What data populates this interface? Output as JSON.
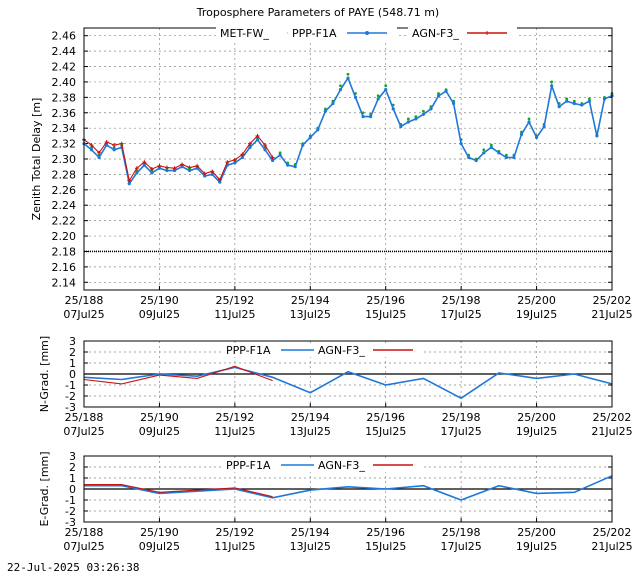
{
  "title": "Troposphere Parameters of PAYE (548.71 m)",
  "footer": "22-Jul-2025 03:26:38",
  "colors": {
    "met": "#11aa11",
    "ppp": "#1f78d8",
    "agn": "#cc1111",
    "grid": "#888888",
    "ref": "#000000"
  },
  "x_ticks": [
    {
      "value": 188,
      "doy": "25/188",
      "date": "07Jul25"
    },
    {
      "value": 190,
      "doy": "25/190",
      "date": "09Jul25"
    },
    {
      "value": 192,
      "doy": "25/192",
      "date": "11Jul25"
    },
    {
      "value": 194,
      "doy": "25/194",
      "date": "13Jul25"
    },
    {
      "value": 196,
      "doy": "25/196",
      "date": "15Jul25"
    },
    {
      "value": 198,
      "doy": "25/198",
      "date": "17Jul25"
    },
    {
      "value": 200,
      "doy": "25/200",
      "date": "19Jul25"
    },
    {
      "value": 202,
      "doy": "25/202",
      "date": "21Jul25"
    }
  ],
  "chart_data": [
    {
      "type": "line",
      "title": "Troposphere Parameters of PAYE (548.71 m)",
      "ylabel": "Zenith Total Delay [m]",
      "xlim": [
        188,
        202
      ],
      "ylim": [
        2.13,
        2.47
      ],
      "y_ticks": [
        "2.14",
        "2.16",
        "2.18",
        "2.20",
        "2.22",
        "2.24",
        "2.26",
        "2.28",
        "2.30",
        "2.32",
        "2.34",
        "2.36",
        "2.38",
        "2.40",
        "2.42",
        "2.44",
        "2.46"
      ],
      "grid": true,
      "legend": "top",
      "reference_line": 2.18,
      "series": [
        {
          "name": "MET-FW_",
          "style": "points",
          "x": [
            188.0,
            188.2,
            188.4,
            188.6,
            188.8,
            189.0,
            189.2,
            189.4,
            189.6,
            189.8,
            190.0,
            190.2,
            190.4,
            190.6,
            190.8,
            191.0,
            191.2,
            191.4,
            191.6,
            191.8,
            192.0,
            192.2,
            192.4,
            192.6,
            192.8,
            193.0,
            193.2,
            193.4,
            193.6,
            193.8,
            194.0,
            194.2,
            194.4,
            194.6,
            194.8,
            195.0,
            195.2,
            195.4,
            195.6,
            195.8,
            196.0,
            196.2,
            196.4,
            196.6,
            196.8,
            197.0,
            197.2,
            197.4,
            197.6,
            197.8,
            198.0,
            198.2,
            198.4,
            198.6,
            198.8,
            199.0,
            199.2,
            199.4,
            199.6,
            199.8,
            200.0,
            200.2,
            200.4,
            200.6,
            200.8,
            201.0,
            201.2,
            201.4,
            201.6,
            201.8,
            202.0
          ],
          "values": [
            2.325,
            2.315,
            2.305,
            2.32,
            2.315,
            2.318,
            2.27,
            2.285,
            2.295,
            2.285,
            2.29,
            2.288,
            2.287,
            2.292,
            2.288,
            2.29,
            2.28,
            2.283,
            2.272,
            2.295,
            2.298,
            2.305,
            2.318,
            2.328,
            2.315,
            2.3,
            2.308,
            2.295,
            2.293,
            2.32,
            2.33,
            2.34,
            2.365,
            2.375,
            2.395,
            2.41,
            2.385,
            2.36,
            2.358,
            2.382,
            2.395,
            2.37,
            2.345,
            2.352,
            2.355,
            2.362,
            2.368,
            2.385,
            2.39,
            2.375,
            2.325,
            2.305,
            2.3,
            2.312,
            2.318,
            2.31,
            2.305,
            2.305,
            2.335,
            2.352,
            2.33,
            2.345,
            2.4,
            2.372,
            2.378,
            2.375,
            2.372,
            2.378,
            2.332,
            2.38,
            2.385
          ]
        },
        {
          "name": "PPP-F1A",
          "style": "line-points",
          "x": [
            188.0,
            188.2,
            188.4,
            188.6,
            188.8,
            189.0,
            189.2,
            189.4,
            189.6,
            189.8,
            190.0,
            190.2,
            190.4,
            190.6,
            190.8,
            191.0,
            191.2,
            191.4,
            191.6,
            191.8,
            192.0,
            192.2,
            192.4,
            192.6,
            192.8,
            193.0,
            193.2,
            193.4,
            193.6,
            193.8,
            194.0,
            194.2,
            194.4,
            194.6,
            194.8,
            195.0,
            195.2,
            195.4,
            195.6,
            195.8,
            196.0,
            196.2,
            196.4,
            196.6,
            196.8,
            197.0,
            197.2,
            197.4,
            197.6,
            197.8,
            198.0,
            198.2,
            198.4,
            198.6,
            198.8,
            199.0,
            199.2,
            199.4,
            199.6,
            199.8,
            200.0,
            200.2,
            200.4,
            200.6,
            200.8,
            201.0,
            201.2,
            201.4,
            201.6,
            201.8,
            202.0
          ],
          "values": [
            2.32,
            2.312,
            2.302,
            2.318,
            2.312,
            2.315,
            2.268,
            2.282,
            2.292,
            2.282,
            2.288,
            2.285,
            2.285,
            2.29,
            2.285,
            2.288,
            2.278,
            2.28,
            2.27,
            2.292,
            2.295,
            2.302,
            2.315,
            2.325,
            2.312,
            2.298,
            2.305,
            2.292,
            2.29,
            2.318,
            2.328,
            2.338,
            2.362,
            2.372,
            2.39,
            2.405,
            2.38,
            2.355,
            2.355,
            2.378,
            2.39,
            2.365,
            2.342,
            2.348,
            2.352,
            2.358,
            2.365,
            2.382,
            2.388,
            2.372,
            2.32,
            2.302,
            2.298,
            2.308,
            2.315,
            2.308,
            2.302,
            2.302,
            2.332,
            2.348,
            2.328,
            2.342,
            2.395,
            2.368,
            2.375,
            2.372,
            2.37,
            2.375,
            2.33,
            2.378,
            2.382
          ]
        },
        {
          "name": "AGN-F3_",
          "style": "line-points",
          "x": [
            188.0,
            188.2,
            188.4,
            188.6,
            188.8,
            189.0,
            189.2,
            189.4,
            189.6,
            189.8,
            190.0,
            190.2,
            190.4,
            190.6,
            190.8,
            191.0,
            191.2,
            191.4,
            191.6,
            191.8,
            192.0,
            192.2,
            192.4,
            192.6,
            192.8,
            193.0
          ],
          "values": [
            2.325,
            2.318,
            2.308,
            2.322,
            2.318,
            2.32,
            2.272,
            2.288,
            2.296,
            2.287,
            2.291,
            2.289,
            2.288,
            2.293,
            2.289,
            2.291,
            2.281,
            2.284,
            2.273,
            2.296,
            2.299,
            2.306,
            2.32,
            2.33,
            2.318,
            2.302
          ]
        }
      ]
    },
    {
      "type": "line",
      "ylabel": "N-Grad. [mm]",
      "xlim": [
        188,
        202
      ],
      "ylim": [
        -3,
        3
      ],
      "y_ticks": [
        "-3",
        "-2",
        "-1",
        "0",
        "1",
        "2",
        "3"
      ],
      "grid": true,
      "legend": "top",
      "reference_line": 0,
      "series": [
        {
          "name": "PPP-F1A",
          "x": [
            188,
            189,
            190,
            191,
            192,
            193,
            194,
            195,
            196,
            197,
            198,
            199,
            200,
            201,
            202
          ],
          "values": [
            -0.3,
            -0.5,
            0.0,
            -0.2,
            0.6,
            -0.3,
            -1.7,
            0.2,
            -1.0,
            -0.4,
            -2.2,
            0.1,
            -0.4,
            0.0,
            -0.9
          ]
        },
        {
          "name": "AGN-F3_",
          "x": [
            188,
            189,
            190,
            191,
            192,
            193
          ],
          "values": [
            -0.5,
            -0.9,
            -0.1,
            -0.4,
            0.7,
            -0.6
          ]
        }
      ]
    },
    {
      "type": "line",
      "ylabel": "E-Grad. [mm]",
      "xlim": [
        188,
        202
      ],
      "ylim": [
        -3,
        3
      ],
      "y_ticks": [
        "-3",
        "-2",
        "-1",
        "0",
        "1",
        "2",
        "3"
      ],
      "grid": true,
      "legend": "top",
      "reference_line": 0,
      "series": [
        {
          "name": "PPP-F1A",
          "x": [
            188,
            189,
            190,
            191,
            192,
            193,
            194,
            195,
            196,
            197,
            198,
            199,
            200,
            201,
            202
          ],
          "values": [
            0.3,
            0.3,
            -0.4,
            -0.2,
            0.0,
            -0.8,
            -0.1,
            0.2,
            0.0,
            0.3,
            -1.0,
            0.3,
            -0.4,
            -0.3,
            1.2
          ]
        },
        {
          "name": "AGN-F3_",
          "x": [
            188,
            189,
            190,
            191,
            192,
            193
          ],
          "values": [
            0.4,
            0.4,
            -0.3,
            -0.1,
            0.1,
            -0.7
          ]
        }
      ]
    }
  ]
}
